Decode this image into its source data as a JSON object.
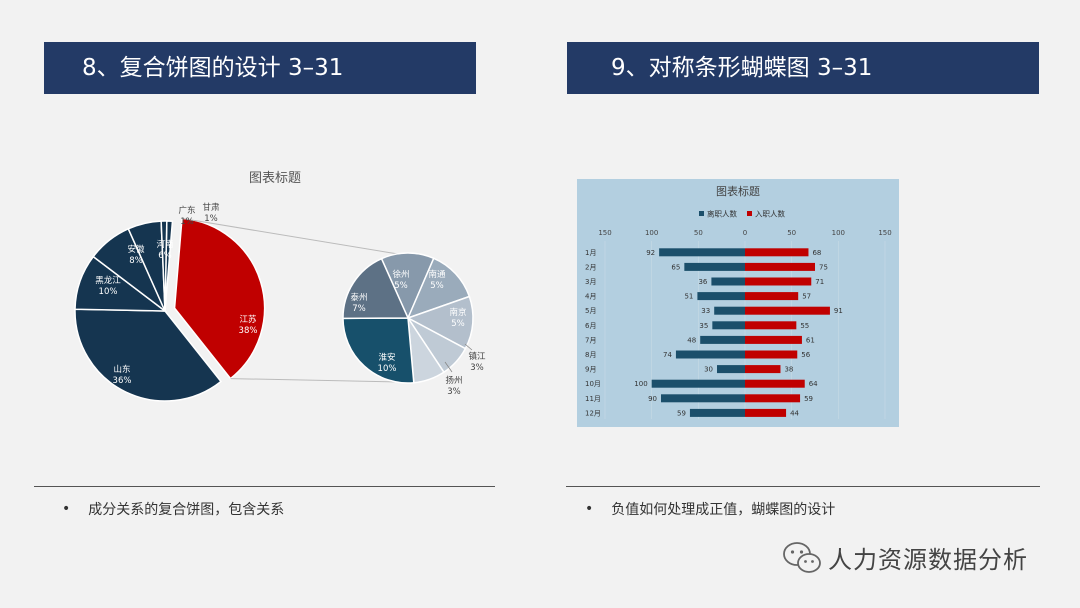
{
  "slide": {
    "left_title": "8、复合饼图的设计 3–31",
    "right_title": "9、对称条形蝴蝶图 3–31",
    "left_bullet": "成分关系的复合饼图，包含关系",
    "right_bullet": "负值如何处理成正值，蝴蝶图的设计",
    "bullet_symbol": "•",
    "watermark": "人力资源数据分析",
    "watermark_icon": "wechat-icon"
  },
  "colors": {
    "header_bg": "#233a66",
    "navy": "#153550",
    "red": "#c00000",
    "teal": "#1b4f6b"
  },
  "chart_data": [
    {
      "type": "pie",
      "title": "图表标题",
      "slices": [
        {
          "label": "江苏",
          "value": 38,
          "display": "38%"
        },
        {
          "label": "山东",
          "value": 36,
          "display": "36%"
        },
        {
          "label": "黑龙江",
          "value": 10,
          "display": "10%"
        },
        {
          "label": "安徽",
          "value": 8,
          "display": "8%"
        },
        {
          "label": "河南",
          "value": 6,
          "display": "6%"
        },
        {
          "label": "广东",
          "value": 1,
          "display": "1%"
        },
        {
          "label": "甘肃",
          "value": 1,
          "display": "1%"
        }
      ],
      "exploded": "江苏",
      "secondary": {
        "of": "江苏",
        "slices": [
          {
            "label": "淮安",
            "value": 10,
            "display": "10%"
          },
          {
            "label": "泰州",
            "value": 7,
            "display": "7%"
          },
          {
            "label": "徐州",
            "value": 5,
            "display": "5%"
          },
          {
            "label": "南通",
            "value": 5,
            "display": "5%"
          },
          {
            "label": "南京",
            "value": 5,
            "display": "5%"
          },
          {
            "label": "镇江",
            "value": 3,
            "display": "3%"
          },
          {
            "label": "扬州",
            "value": 3,
            "display": "3%"
          }
        ]
      }
    },
    {
      "type": "bar",
      "orientation": "horizontal-butterfly",
      "title": "图表标题",
      "legend": [
        "离职人数",
        "入职人数"
      ],
      "legend_position": "top",
      "x_ticks": [
        "150",
        "100",
        "50",
        "0",
        "50",
        "100",
        "150"
      ],
      "xlim": [
        -150,
        150
      ],
      "categories": [
        "1月",
        "2月",
        "3月",
        "4月",
        "5月",
        "6月",
        "7月",
        "8月",
        "9月",
        "10月",
        "11月",
        "12月"
      ],
      "series": [
        {
          "name": "离职人数",
          "side": "left",
          "values": [
            92,
            65,
            36,
            51,
            33,
            35,
            48,
            74,
            30,
            100,
            90,
            59
          ]
        },
        {
          "name": "入职人数",
          "side": "right",
          "values": [
            68,
            75,
            71,
            57,
            91,
            55,
            61,
            56,
            38,
            64,
            59,
            44
          ]
        }
      ]
    }
  ]
}
